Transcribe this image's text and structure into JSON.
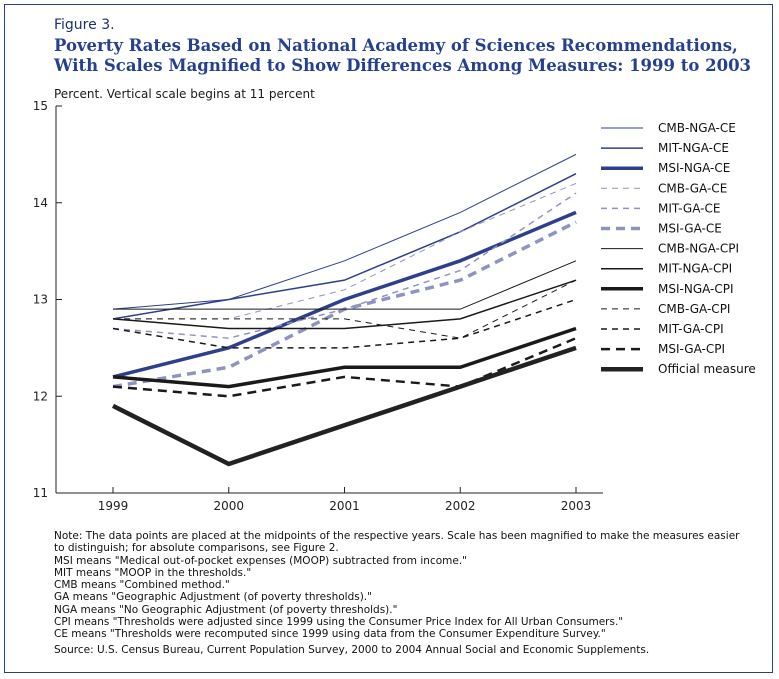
{
  "figure_label": "Figure 3.",
  "title_line1": "Poverty Rates Based on National Academy of Sciences Recommendations,",
  "title_line2": "With Scales Magnified to Show Differences Among Measures: 1999 to 2003",
  "unit_note": "Percent.  Vertical scale begins at 11 percent",
  "notes": [
    "Note: The data points are placed at the midpoints of the respective years.   Scale has been magnified to make the measures easier",
    "to distinguish; for absolute comparisons, see Figure 2.",
    "MSI means \"Medical out-of-pocket expenses (MOOP) subtracted from income.\"",
    "MIT means \"MOOP in the thresholds.\"",
    "CMB means \"Combined method.\"",
    "GA means \"Geographic Adjustment (of poverty thresholds).\"",
    "NGA means \"No Geographic Adjustment (of poverty thresholds).\"",
    "CPI means \"Thresholds were adjusted since 1999 using the Consumer Price Index for All Urban Consumers.\"",
    "CE means \"Thresholds were recomputed since 1999 using data from the Consumer Expenditure Survey.\""
  ],
  "source": "Source: U.S. Census Bureau, Current Population Survey, 2000 to 2004 Annual Social and Economic Supplements.",
  "chart_data": {
    "type": "line",
    "x": [
      "1999",
      "2000",
      "2001",
      "2002",
      "2003"
    ],
    "ylim": [
      11,
      15
    ],
    "yticks": [
      11,
      12,
      13,
      14,
      15
    ],
    "grid": false,
    "legend_position": "top-right",
    "series": [
      {
        "name": "CMB-NGA-CE",
        "values": [
          12.9,
          13.0,
          13.4,
          13.9,
          14.5
        ],
        "color": "#2e3f8c",
        "width": 1,
        "dash": "solid"
      },
      {
        "name": "MIT-NGA-CE",
        "values": [
          12.8,
          13.0,
          13.2,
          13.7,
          14.3
        ],
        "color": "#2e3f8c",
        "width": 1.5,
        "dash": "solid"
      },
      {
        "name": "MSI-NGA-CE",
        "values": [
          12.2,
          12.5,
          13.0,
          13.4,
          13.9
        ],
        "color": "#2e3f8c",
        "width": 3.5,
        "dash": "solid"
      },
      {
        "name": "CMB-GA-CE",
        "values": [
          12.8,
          12.8,
          13.1,
          13.7,
          14.2
        ],
        "color": "#8f93c2",
        "width": 1,
        "dash": "dashed"
      },
      {
        "name": "MIT-GA-CE",
        "values": [
          12.7,
          12.6,
          12.9,
          13.3,
          14.1
        ],
        "color": "#8f93c2",
        "width": 1.5,
        "dash": "dashed"
      },
      {
        "name": "MSI-GA-CE",
        "values": [
          12.1,
          12.3,
          12.9,
          13.2,
          13.8
        ],
        "color": "#8f93c2",
        "width": 3.5,
        "dash": "dashed"
      },
      {
        "name": "CMB-NGA-CPI",
        "values": [
          12.9,
          12.9,
          12.9,
          12.9,
          13.4
        ],
        "color": "#1a1a1a",
        "width": 1,
        "dash": "solid"
      },
      {
        "name": "MIT-NGA-CPI",
        "values": [
          12.8,
          12.7,
          12.7,
          12.8,
          13.2
        ],
        "color": "#1a1a1a",
        "width": 1.5,
        "dash": "solid"
      },
      {
        "name": "MSI-NGA-CPI",
        "values": [
          12.2,
          12.1,
          12.3,
          12.3,
          12.7
        ],
        "color": "#1a1a1a",
        "width": 3.5,
        "dash": "solid"
      },
      {
        "name": "CMB-GA-CPI",
        "values": [
          12.8,
          12.8,
          12.8,
          12.6,
          13.2
        ],
        "color": "#1a1a1a",
        "width": 1,
        "dash": "dashed"
      },
      {
        "name": "MIT-GA-CPI",
        "values": [
          12.7,
          12.5,
          12.5,
          12.6,
          13.0
        ],
        "color": "#1a1a1a",
        "width": 1.5,
        "dash": "dashed"
      },
      {
        "name": "MSI-GA-CPI",
        "values": [
          12.1,
          12.0,
          12.2,
          12.1,
          12.6
        ],
        "color": "#1a1a1a",
        "width": 2.5,
        "dash": "dashed"
      },
      {
        "name": "Official measure",
        "values": [
          11.9,
          11.3,
          11.7,
          12.1,
          12.5
        ],
        "color": "#222222",
        "width": 4.5,
        "dash": "solid"
      }
    ]
  }
}
